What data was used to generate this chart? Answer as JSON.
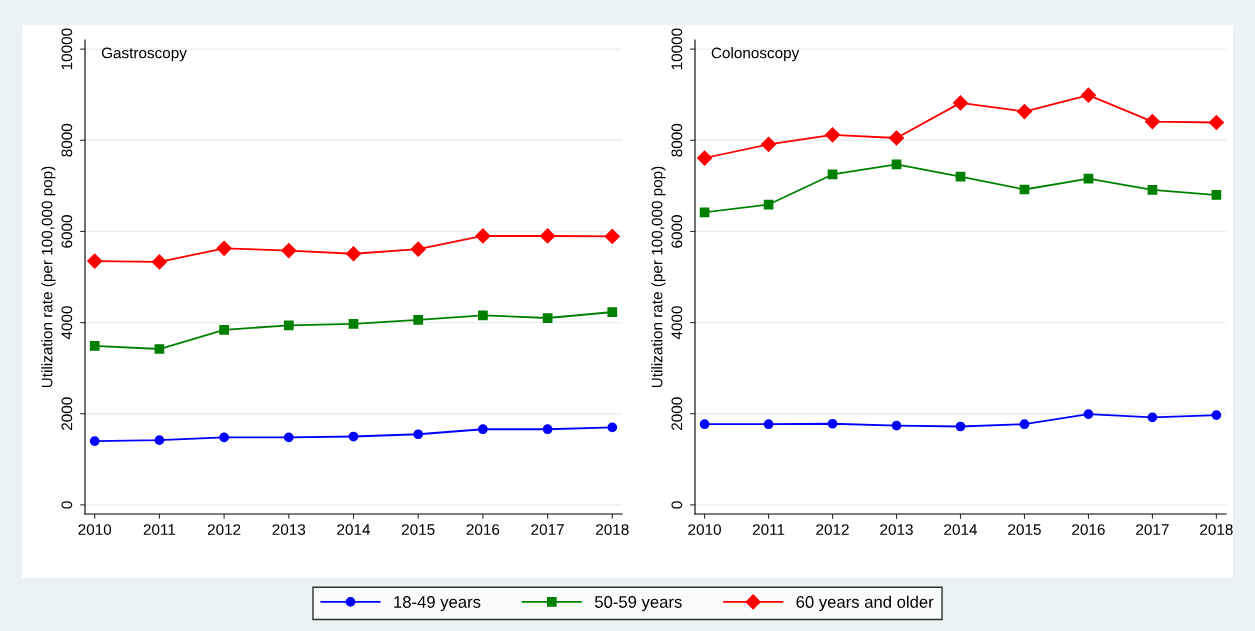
{
  "chart_data": [
    {
      "type": "line",
      "title": "Gastroscopy",
      "ylabel": "Utilization rate (per 100,000 pop)",
      "x": [
        2010,
        2011,
        2012,
        2013,
        2014,
        2015,
        2016,
        2017,
        2018
      ],
      "xlim": [
        2009.85,
        2018.15
      ],
      "xticks": [
        2010,
        2011,
        2012,
        2013,
        2014,
        2015,
        2016,
        2017,
        2018
      ],
      "ylim": [
        -200,
        10200
      ],
      "yticks": [
        0,
        2000,
        4000,
        6000,
        8000,
        10000
      ],
      "grid": "y",
      "series": [
        {
          "color": "#0000ff",
          "marker": "circle",
          "values": [
            1400,
            1420,
            1480,
            1480,
            1500,
            1550,
            1660,
            1660,
            1700
          ]
        },
        {
          "color": "#008000",
          "marker": "square",
          "values": [
            3490,
            3420,
            3840,
            3940,
            3970,
            4060,
            4160,
            4100,
            4230
          ]
        },
        {
          "color": "#ff0000",
          "marker": "diamond",
          "values": [
            5350,
            5330,
            5630,
            5580,
            5510,
            5610,
            5900,
            5900,
            5890
          ]
        }
      ]
    },
    {
      "type": "line",
      "title": "Colonoscopy",
      "ylabel": "Utilization rate (per 100,000 pop)",
      "x": [
        2010,
        2011,
        2012,
        2013,
        2014,
        2015,
        2016,
        2017,
        2018
      ],
      "xlim": [
        2009.85,
        2018.15
      ],
      "xticks": [
        2010,
        2011,
        2012,
        2013,
        2014,
        2015,
        2016,
        2017,
        2018
      ],
      "ylim": [
        -200,
        10200
      ],
      "yticks": [
        0,
        2000,
        4000,
        6000,
        8000,
        10000
      ],
      "grid": "y",
      "legend": "bottom",
      "series": [
        {
          "name": "18-49 years",
          "color": "#0000ff",
          "marker": "circle",
          "values": [
            1770,
            1770,
            1780,
            1740,
            1720,
            1770,
            1990,
            1920,
            1970
          ]
        },
        {
          "name": "50-59 years",
          "color": "#008000",
          "marker": "square",
          "values": [
            6420,
            6590,
            7250,
            7470,
            7200,
            6920,
            7160,
            6910,
            6800
          ]
        },
        {
          "name": "60 years and older",
          "color": "#ff0000",
          "marker": "diamond",
          "values": [
            7610,
            7910,
            8120,
            8050,
            8820,
            8630,
            8990,
            8410,
            8390
          ]
        }
      ]
    }
  ]
}
